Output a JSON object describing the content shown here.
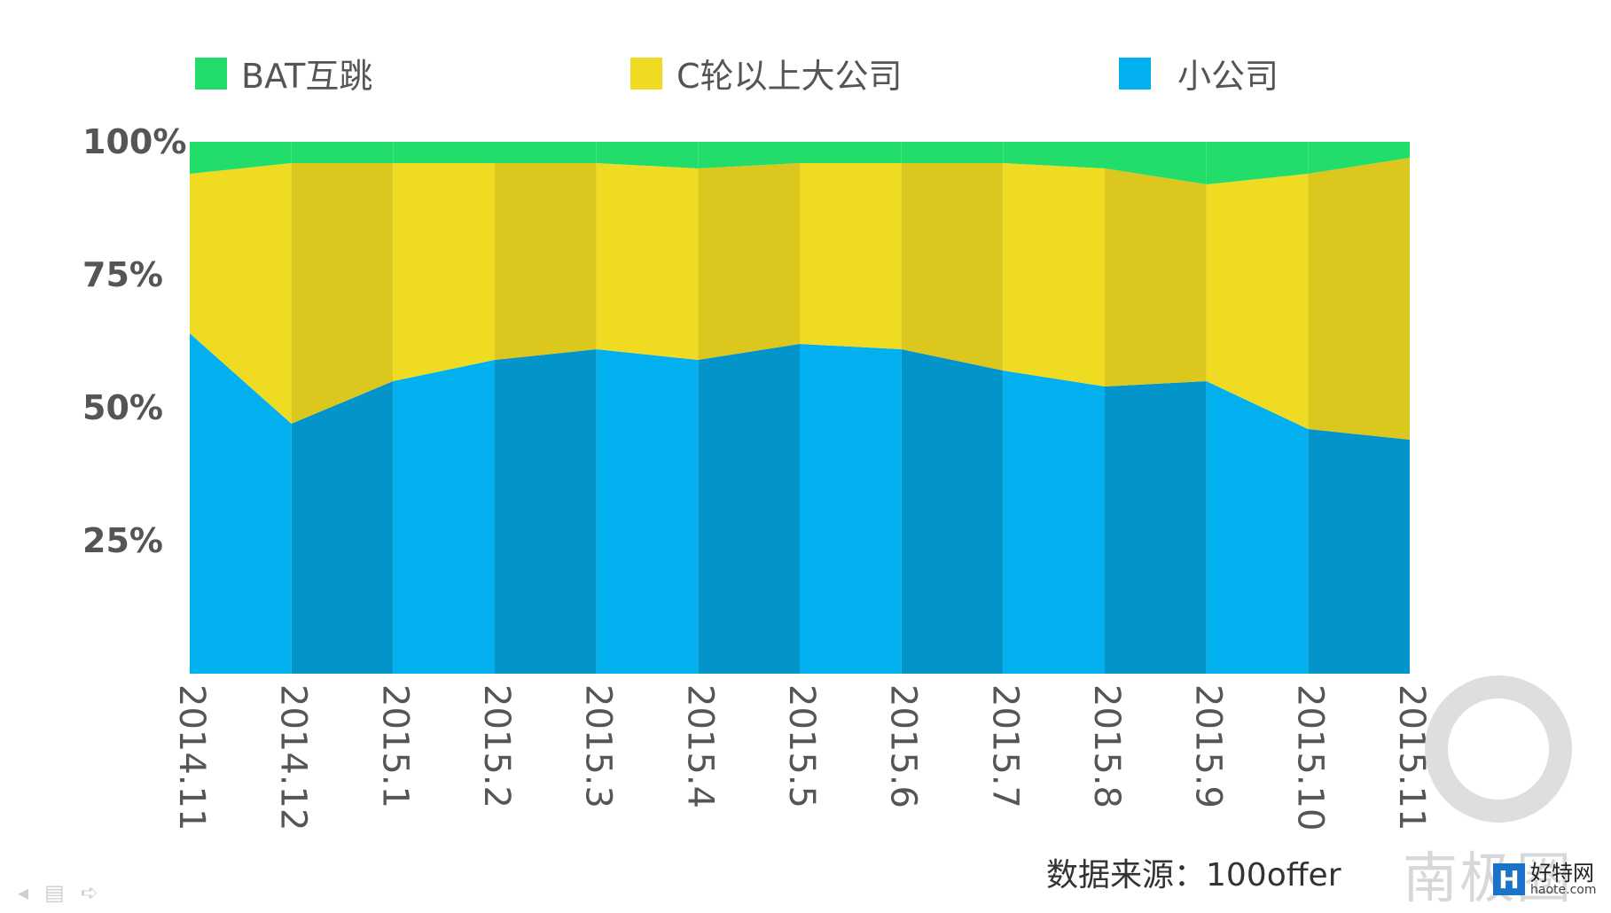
{
  "chart_data": {
    "type": "area",
    "title": "",
    "xlabel": "",
    "ylabel": "",
    "ylim": [
      0,
      100
    ],
    "stacked": true,
    "normalized": true,
    "x": [
      "2014.11",
      "2014.12",
      "2015.1",
      "2015.2",
      "2015.3",
      "2015.4",
      "2015.5",
      "2015.6",
      "2015.7",
      "2015.8",
      "2015.9",
      "2015.10",
      "2015.11"
    ],
    "yticks": [
      "25%",
      "50%",
      "75%",
      "100%"
    ],
    "legend_position": "top",
    "series": [
      {
        "name": "小公司",
        "color": "#03B0EF",
        "alt_color": "#0394C9",
        "values": [
          64,
          47,
          55,
          59,
          61,
          59,
          62,
          61,
          57,
          54,
          55,
          46,
          44
        ]
      },
      {
        "name": "C轮以上大公司",
        "color": "#EFDC22",
        "alt_color": "#DCC71F",
        "values": [
          30,
          49,
          41,
          37,
          35,
          36,
          34,
          35,
          39,
          41,
          37,
          48,
          53
        ]
      },
      {
        "name": "BAT互跳",
        "color": "#22DD6A",
        "alt_color": "#22DD6A",
        "values": [
          6,
          4,
          4,
          4,
          4,
          5,
          4,
          4,
          4,
          5,
          8,
          6,
          3
        ]
      }
    ],
    "legend_order": [
      "BAT互跳",
      "C轮以上大公司",
      "小公司"
    ],
    "source": "数据来源：100offer"
  },
  "watermark": {
    "text": "南极圈",
    "badge_letter": "H",
    "badge_name": "好特网",
    "badge_url": "haote.com"
  },
  "toolbar_icons": [
    "prev-icon",
    "menu-icon",
    "next-icon"
  ]
}
